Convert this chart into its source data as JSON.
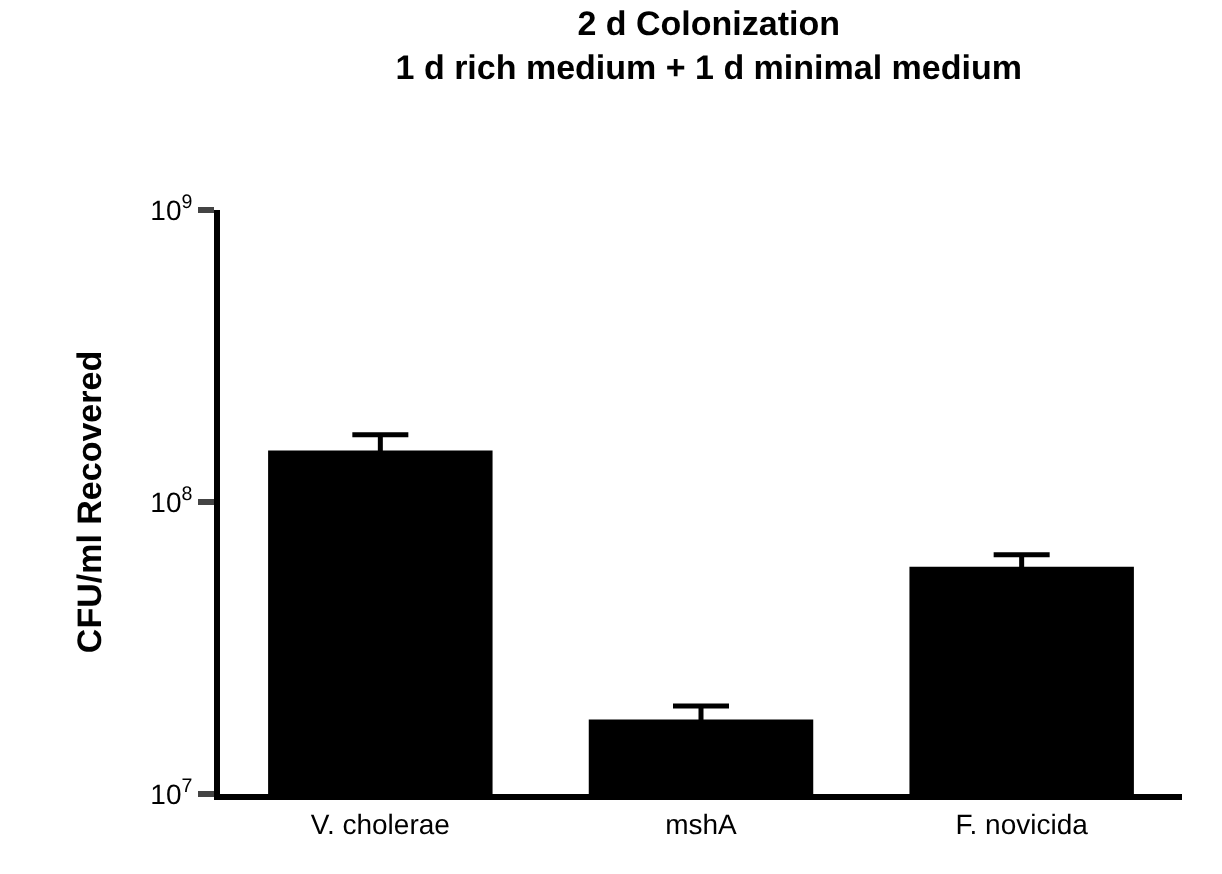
{
  "chart_data": {
    "type": "bar",
    "title": "2 d Colonization",
    "subtitle": "1 d rich medium + 1 d minimal medium",
    "ylabel": "CFU/ml Recovered",
    "categories": [
      "V. cholerae",
      "mshA",
      "F. novicida"
    ],
    "values": [
      150000000,
      18000000,
      60000000
    ],
    "errors": [
      20000000,
      2000000,
      6000000
    ],
    "color": "#000000",
    "log": true,
    "ylim": [
      10000000,
      1000000000
    ],
    "yticks": [
      {
        "value": 10000000,
        "label": "10$^{7}$"
      },
      {
        "value": 100000000,
        "label": "10$^{8}$"
      },
      {
        "value": 1000000000,
        "label": "10$^{9}$"
      }
    ],
    "grid": false
  }
}
